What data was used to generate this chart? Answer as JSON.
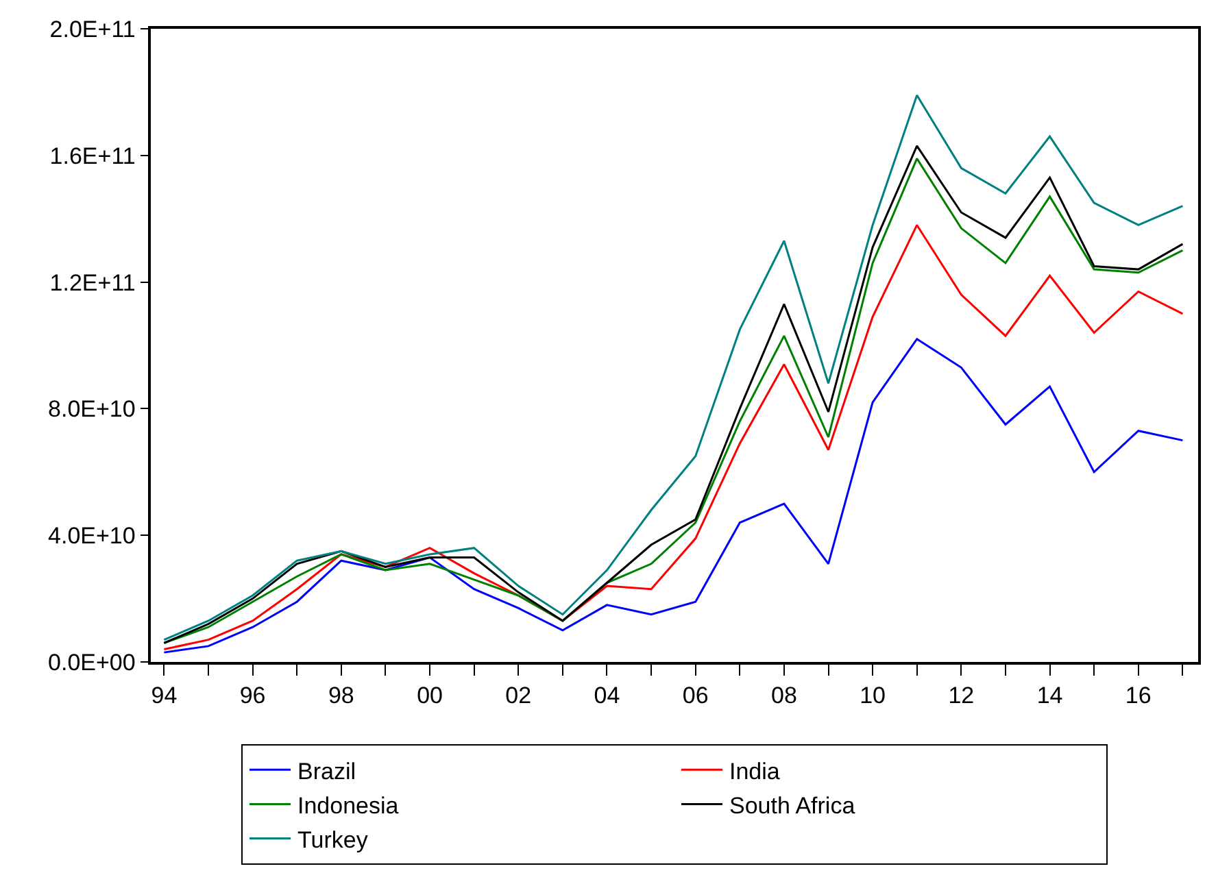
{
  "chart_data": {
    "type": "line",
    "x": [
      1994,
      1995,
      1996,
      1997,
      1998,
      1999,
      2000,
      2001,
      2002,
      2003,
      2004,
      2005,
      2006,
      2007,
      2008,
      2009,
      2010,
      2011,
      2012,
      2013,
      2014,
      2015,
      2016,
      2017
    ],
    "xlim": [
      1993.7,
      2017.35
    ],
    "xticks": [
      {
        "value": 1994,
        "label": "94"
      },
      {
        "value": 1995,
        "label": null
      },
      {
        "value": 1996,
        "label": "96"
      },
      {
        "value": 1997,
        "label": null
      },
      {
        "value": 1998,
        "label": "98"
      },
      {
        "value": 1999,
        "label": null
      },
      {
        "value": 2000,
        "label": "00"
      },
      {
        "value": 2001,
        "label": null
      },
      {
        "value": 2002,
        "label": "02"
      },
      {
        "value": 2003,
        "label": null
      },
      {
        "value": 2004,
        "label": "04"
      },
      {
        "value": 2005,
        "label": null
      },
      {
        "value": 2006,
        "label": "06"
      },
      {
        "value": 2007,
        "label": null
      },
      {
        "value": 2008,
        "label": "08"
      },
      {
        "value": 2009,
        "label": null
      },
      {
        "value": 2010,
        "label": "10"
      },
      {
        "value": 2011,
        "label": null
      },
      {
        "value": 2012,
        "label": "12"
      },
      {
        "value": 2013,
        "label": null
      },
      {
        "value": 2014,
        "label": "14"
      },
      {
        "value": 2015,
        "label": null
      },
      {
        "value": 2016,
        "label": "16"
      },
      {
        "value": 2017,
        "label": null
      }
    ],
    "ylim": [
      0,
      200000000000.0
    ],
    "yticks": [
      {
        "value": 0,
        "label": "0.0E+00"
      },
      {
        "value": 40000000000.0,
        "label": "4.0E+10"
      },
      {
        "value": 80000000000.0,
        "label": "8.0E+10"
      },
      {
        "value": 120000000000.0,
        "label": "1.2E+11"
      },
      {
        "value": 160000000000.0,
        "label": "1.6E+11"
      },
      {
        "value": 200000000000.0,
        "label": "2.0E+11"
      }
    ],
    "legend": "bottom",
    "marker": "none",
    "line_style": "solid",
    "series": [
      {
        "name": "Brazil",
        "color": "#0000ff",
        "values": [
          3000000000.0,
          5000000000.0,
          11000000000.0,
          19000000000.0,
          32000000000.0,
          29000000000.0,
          33000000000.0,
          23000000000.0,
          17000000000.0,
          10000000000.0,
          18000000000.0,
          15000000000.0,
          19000000000.0,
          44000000000.0,
          50000000000.0,
          31000000000.0,
          82000000000.0,
          102000000000.0,
          93000000000.0,
          75000000000.0,
          87000000000.0,
          60000000000.0,
          73000000000.0,
          70000000000.0
        ]
      },
      {
        "name": "India",
        "color": "#ff0000",
        "values": [
          4000000000.0,
          7000000000.0,
          13000000000.0,
          23000000000.0,
          34000000000.0,
          30000000000.0,
          36000000000.0,
          28000000000.0,
          21000000000.0,
          13000000000.0,
          24000000000.0,
          23000000000.0,
          39000000000.0,
          69000000000.0,
          94000000000.0,
          67000000000.0,
          109000000000.0,
          138000000000.0,
          116000000000.0,
          103000000000.0,
          122000000000.0,
          104000000000.0,
          117000000000.0,
          110000000000.0
        ]
      },
      {
        "name": "Indonesia",
        "color": "#008000",
        "values": [
          6000000000.0,
          11000000000.0,
          19000000000.0,
          27000000000.0,
          34000000000.0,
          29000000000.0,
          31000000000.0,
          26000000000.0,
          21000000000.0,
          13000000000.0,
          25000000000.0,
          31000000000.0,
          44000000000.0,
          76000000000.0,
          103000000000.0,
          71000000000.0,
          126000000000.0,
          159000000000.0,
          137000000000.0,
          126000000000.0,
          147000000000.0,
          124000000000.0,
          123000000000.0,
          130000000000.0
        ]
      },
      {
        "name": "South Africa",
        "color": "#000000",
        "values": [
          6000000000.0,
          12000000000.0,
          20000000000.0,
          31000000000.0,
          35000000000.0,
          30000000000.0,
          33000000000.0,
          33000000000.0,
          22000000000.0,
          13000000000.0,
          25000000000.0,
          37000000000.0,
          45000000000.0,
          80000000000.0,
          113000000000.0,
          79000000000.0,
          131000000000.0,
          163000000000.0,
          142000000000.0,
          134000000000.0,
          153000000000.0,
          125000000000.0,
          124000000000.0,
          132000000000.0
        ]
      },
      {
        "name": "Turkey",
        "color": "#008080",
        "values": [
          7000000000.0,
          13000000000.0,
          21000000000.0,
          32000000000.0,
          35000000000.0,
          31000000000.0,
          34000000000.0,
          36000000000.0,
          24000000000.0,
          15000000000.0,
          29000000000.0,
          48000000000.0,
          65000000000.0,
          105000000000.0,
          133000000000.0,
          88000000000.0,
          138000000000.0,
          179000000000.0,
          156000000000.0,
          148000000000.0,
          166000000000.0,
          145000000000.0,
          138000000000.0,
          144000000000.0
        ]
      }
    ]
  }
}
